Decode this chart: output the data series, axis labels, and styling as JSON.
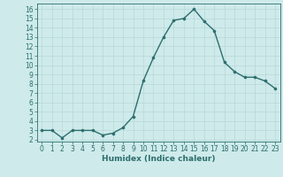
{
  "x": [
    0,
    1,
    2,
    3,
    4,
    5,
    6,
    7,
    8,
    9,
    10,
    11,
    12,
    13,
    14,
    15,
    16,
    17,
    18,
    19,
    20,
    21,
    22,
    23
  ],
  "y": [
    3.0,
    3.0,
    2.2,
    3.0,
    3.0,
    3.0,
    2.5,
    2.7,
    3.3,
    4.5,
    8.3,
    10.8,
    13.0,
    14.8,
    15.0,
    16.0,
    14.7,
    13.7,
    10.3,
    9.3,
    8.7,
    8.7,
    8.3,
    7.5
  ],
  "xlabel": "Humidex (Indice chaleur)",
  "yticks": [
    2,
    3,
    4,
    5,
    6,
    7,
    8,
    9,
    10,
    11,
    12,
    13,
    14,
    15,
    16
  ],
  "xticks": [
    0,
    1,
    2,
    3,
    4,
    5,
    6,
    7,
    8,
    9,
    10,
    11,
    12,
    13,
    14,
    15,
    16,
    17,
    18,
    19,
    20,
    21,
    22,
    23
  ],
  "ylim": [
    1.8,
    16.6
  ],
  "xlim": [
    -0.5,
    23.5
  ],
  "line_color": "#2d6e6e",
  "marker_color": "#2d6e6e",
  "bg_color": "#ceeaea",
  "grid_color": "#b8d8d8",
  "axis_color": "#2d6e6e",
  "tick_color": "#2d6e6e",
  "label_color": "#2d6e6e",
  "font_size_tick": 5.5,
  "font_size_label": 6.5,
  "line_width": 1.0,
  "marker_size": 2.2
}
